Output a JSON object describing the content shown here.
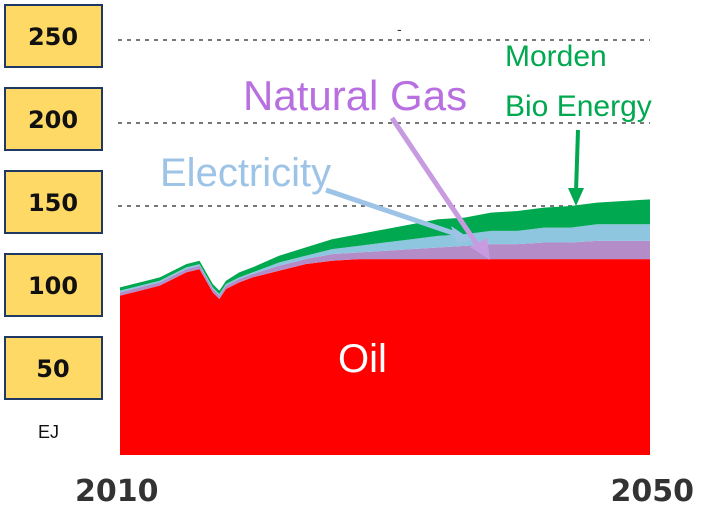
{
  "chart_data": {
    "type": "area",
    "stacked": true,
    "x_labels": [
      "2010",
      "2050"
    ],
    "x_range": [
      2010,
      2050
    ],
    "ylim": [
      0,
      260
    ],
    "y_ticks": [
      250,
      200,
      150,
      100,
      50
    ],
    "y_unit": "EJ",
    "grid": "dashed horizontal lines at 150, 200, 250",
    "x": [
      2010,
      2011,
      2012,
      2013,
      2014,
      2015,
      2016,
      2017,
      2017.5,
      2018,
      2019,
      2020,
      2022,
      2024,
      2026,
      2028,
      2030,
      2032,
      2034,
      2036,
      2038,
      2040,
      2042,
      2044,
      2046,
      2048,
      2050
    ],
    "series": [
      {
        "name": "Oil",
        "color": "#FF0000",
        "values": [
          96,
          98,
          100,
          102,
          106,
          110,
          112,
          98,
          94,
          100,
          104,
          107,
          111,
          115,
          117,
          118,
          118,
          118,
          118,
          118,
          118,
          118,
          118,
          118,
          118,
          118,
          118
        ]
      },
      {
        "name": "Natural Gas",
        "color": "#B48CC8",
        "values": [
          2,
          2,
          2,
          2,
          2,
          2,
          2,
          2,
          2,
          2,
          2,
          2,
          3,
          3,
          4,
          4,
          5,
          6,
          7,
          8,
          9,
          9,
          10,
          10,
          11,
          11,
          11
        ]
      },
      {
        "name": "Electricity",
        "color": "#8EC5DF",
        "values": [
          1,
          1,
          1,
          1,
          1,
          1,
          1,
          1,
          1,
          1,
          1,
          1,
          2,
          2,
          3,
          4,
          5,
          6,
          7,
          7,
          8,
          8,
          9,
          9,
          10,
          10,
          10
        ]
      },
      {
        "name": "Morden Bio Energy",
        "color": "#00A84F",
        "values": [
          2,
          2,
          2,
          2,
          2,
          2,
          2,
          2,
          2,
          2,
          3,
          3,
          4,
          5,
          6,
          7,
          8,
          9,
          10,
          10,
          11,
          12,
          12,
          13,
          13,
          14,
          15
        ]
      }
    ],
    "annotations": {
      "oil": "Oil",
      "natural_gas": "Natural Gas",
      "electricity": "Electricity",
      "bio_line1": "Morden",
      "bio_line2": "Bio Energy",
      "top_mark": "-"
    }
  }
}
